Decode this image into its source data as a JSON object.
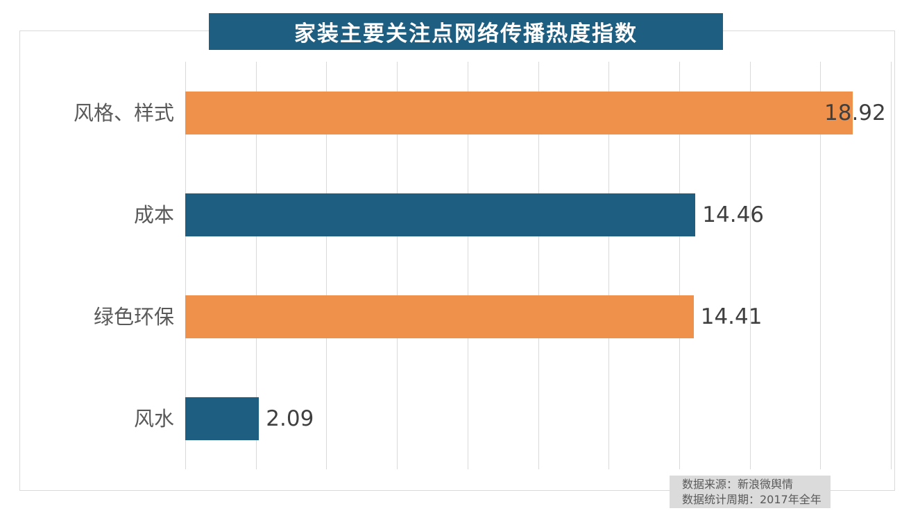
{
  "chart_data": {
    "type": "bar",
    "orientation": "horizontal",
    "title": "家装主要关注点网络传播热度指数",
    "categories": [
      "风格、样式",
      "成本",
      "绿色环保",
      "风水"
    ],
    "values": [
      18.92,
      14.46,
      14.41,
      2.09
    ],
    "value_labels": [
      "18.92",
      "14.46",
      "14.41",
      "2.09"
    ],
    "bar_colors": [
      "#F0914B",
      "#1E5E80",
      "#F0914B",
      "#1E5E80"
    ],
    "xlim": [
      0,
      20
    ],
    "grid_step": 2,
    "grid": true,
    "legend": "none",
    "value_label_position": "outside-end"
  },
  "source_note": {
    "line1": "数据来源：新浪微舆情",
    "line2": "数据统计周期：2017年全年"
  },
  "colors": {
    "accent_orange": "#F0914B",
    "accent_teal": "#1E5E80",
    "title_bg": "#1E5E80",
    "gridline": "#D9D9D9",
    "frame_border": "#D9D9D9",
    "label_text": "#595959",
    "value_text": "#3F3F3F",
    "note_bg": "#DBDBDB"
  }
}
